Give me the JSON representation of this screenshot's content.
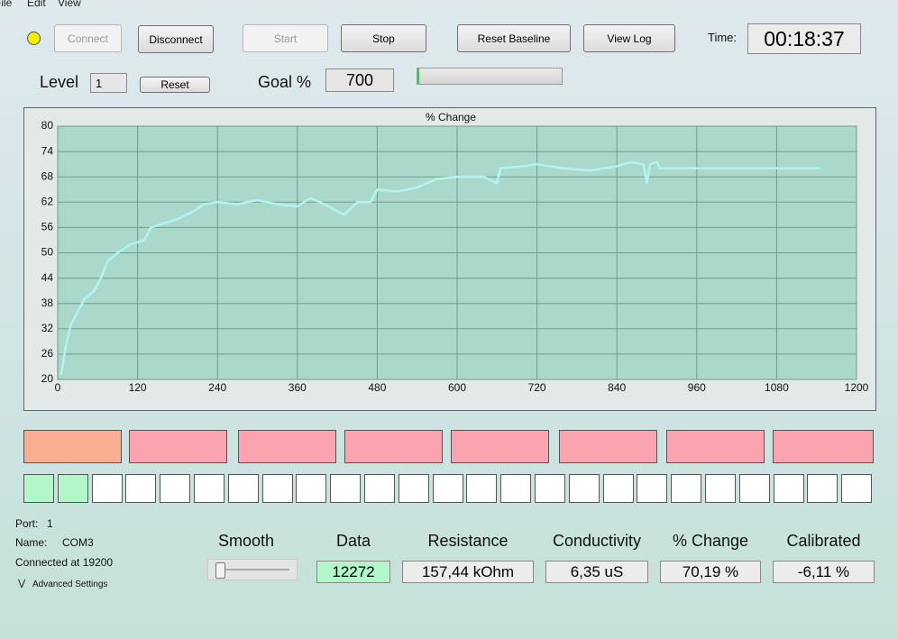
{
  "menu": [
    "File",
    "Edit",
    "View"
  ],
  "toolbar": {
    "connect": "Connect",
    "disconnect": "Disconnect",
    "start": "Start",
    "stop": "Stop",
    "reset_baseline": "Reset Baseline",
    "view_log": "View Log",
    "time_label": "Time:",
    "time": "00:18:37"
  },
  "level": {
    "label": "Level",
    "value": "1",
    "reset": "Reset"
  },
  "goal": {
    "label": "Goal %",
    "value": "700"
  },
  "chart_data": {
    "type": "line",
    "title": "% Change",
    "x": [
      5,
      10,
      15,
      20,
      30,
      40,
      55,
      65,
      75,
      90,
      110,
      130,
      140,
      160,
      180,
      200,
      220,
      240,
      270,
      300,
      330,
      360,
      380,
      400,
      430,
      450,
      470,
      480,
      510,
      540,
      570,
      600,
      640,
      660,
      665,
      700,
      720,
      760,
      800,
      840,
      860,
      880,
      885,
      890,
      900,
      905,
      1145
    ],
    "values": [
      21,
      26,
      30,
      33,
      36,
      39,
      41,
      44,
      48,
      50,
      52,
      53,
      56,
      57,
      58,
      59.5,
      61.5,
      62,
      61.5,
      62.5,
      61.5,
      61,
      63,
      61.5,
      59,
      62,
      62,
      65,
      64.5,
      65.5,
      67.5,
      68,
      68,
      66.5,
      70,
      70.5,
      71,
      70,
      69.5,
      70.5,
      71.5,
      71,
      66.5,
      71,
      71.5,
      70,
      70
    ],
    "color": "#b4f4f0",
    "xlim": [
      0,
      1200
    ],
    "xticks": [
      0,
      120,
      240,
      360,
      480,
      600,
      720,
      840,
      960,
      1080,
      1200
    ],
    "ylim": [
      20,
      80
    ],
    "yticks": [
      20,
      26,
      32,
      38,
      44,
      50,
      56,
      62,
      68,
      74,
      80
    ],
    "grid": true
  },
  "port_info": {
    "port_label": "Port:",
    "port": "1",
    "name_label": "Name:",
    "name": "COM3",
    "connected": "Connected at 19200",
    "advanced": "Advanced Settings"
  },
  "smooth_label": "Smooth",
  "readouts": [
    {
      "label": "Data",
      "value": "12272"
    },
    {
      "label": "Resistance",
      "value": "157,44 kOhm"
    },
    {
      "label": "Conductivity",
      "value": "6,35 uS"
    },
    {
      "label": "% Change",
      "value": "70,19 %"
    },
    {
      "label": "Calibrated",
      "value": "-6,11 %"
    }
  ]
}
